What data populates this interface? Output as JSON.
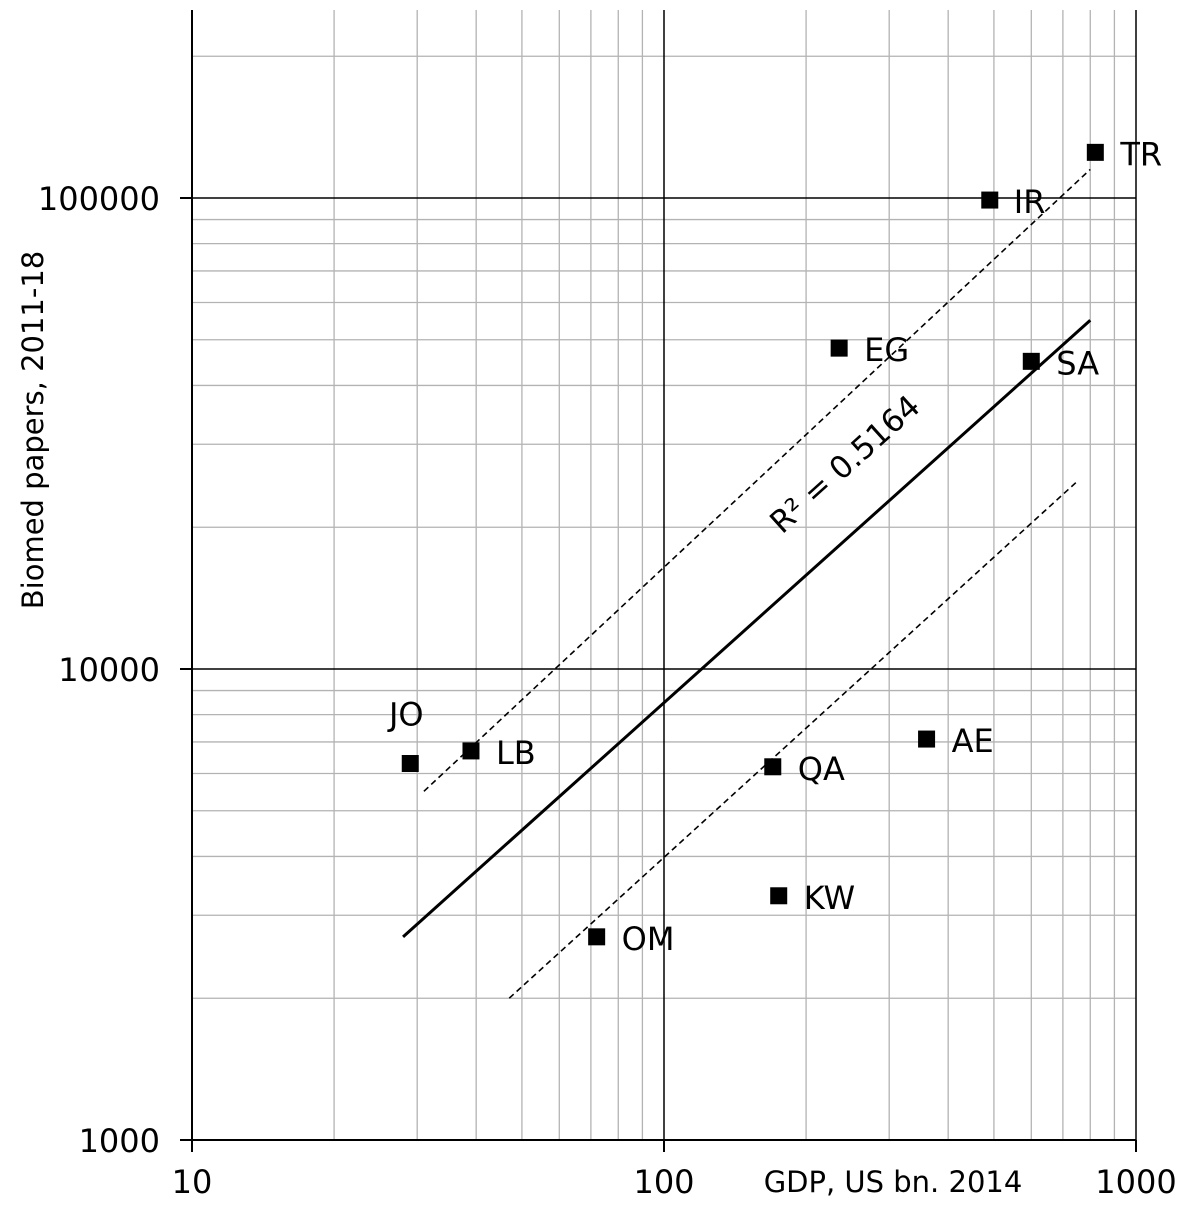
{
  "chart_data": {
    "type": "scatter",
    "xscale": "log",
    "yscale": "log",
    "xlim": [
      10,
      1000
    ],
    "ylim": [
      1000,
      200000
    ],
    "xlabel": "GDP, US bn. 2014",
    "ylabel": "Biomed papers, 2011-18",
    "x_ticks": [
      10,
      100,
      1000
    ],
    "x_tick_labels": [
      "10",
      "100",
      "1000"
    ],
    "y_ticks": [
      1000,
      10000,
      100000
    ],
    "y_tick_labels": [
      "1000",
      "10000",
      "100000"
    ],
    "grid": true,
    "points": [
      {
        "label": "JO",
        "x": 29,
        "y": 6300
      },
      {
        "label": "LB",
        "x": 39,
        "y": 6700
      },
      {
        "label": "OM",
        "x": 72,
        "y": 2700
      },
      {
        "label": "QA",
        "x": 170,
        "y": 6200
      },
      {
        "label": "KW",
        "x": 175,
        "y": 3300
      },
      {
        "label": "EG",
        "x": 235,
        "y": 48000
      },
      {
        "label": "AE",
        "x": 360,
        "y": 7100
      },
      {
        "label": "IR",
        "x": 490,
        "y": 99000
      },
      {
        "label": "SA",
        "x": 600,
        "y": 45000
      },
      {
        "label": "TR",
        "x": 820,
        "y": 125000
      }
    ],
    "fit": {
      "type": "power",
      "r2_label": "R² = 0.5164",
      "line": [
        {
          "x": 28,
          "y": 2700
        },
        {
          "x": 800,
          "y": 55000
        }
      ],
      "band_upper": [
        {
          "x": 31,
          "y": 5500
        },
        {
          "x": 800,
          "y": 115000
        }
      ],
      "band_lower": [
        {
          "x": 47,
          "y": 2000
        },
        {
          "x": 750,
          "y": 25000
        }
      ]
    },
    "colors": {
      "marker": "#000000",
      "fit": "#000000",
      "grid_minor": "#b3b3b3",
      "grid_major": "#000000"
    }
  }
}
